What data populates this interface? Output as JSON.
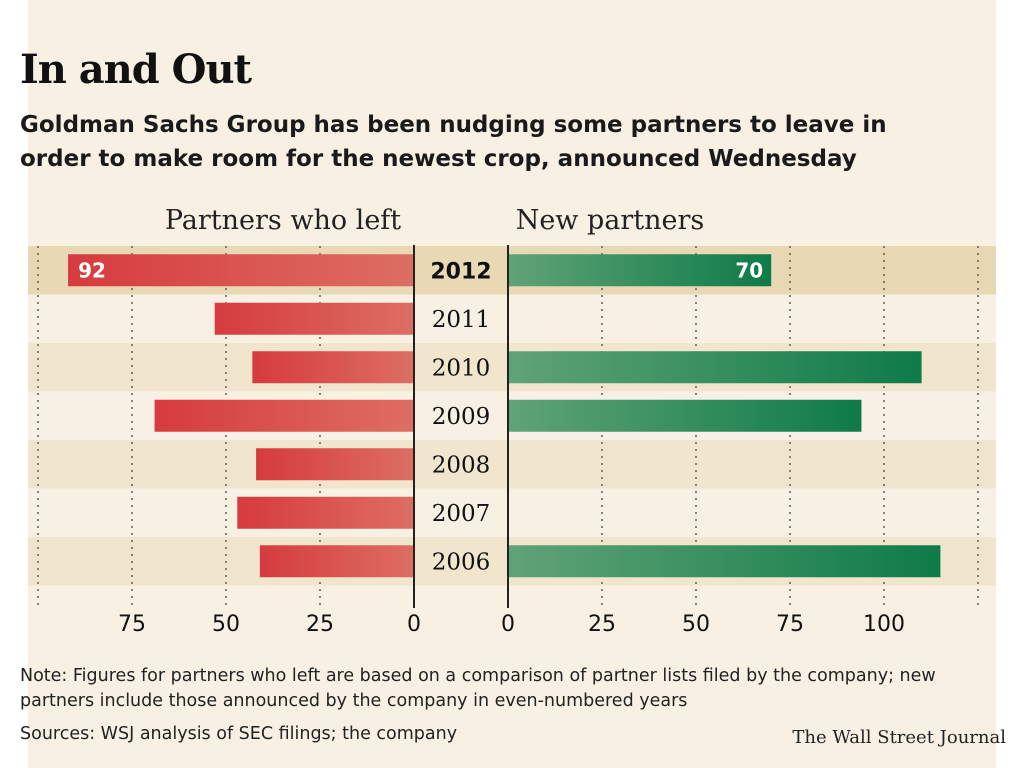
{
  "header": {
    "title": "In and Out",
    "subtitle": "Goldman Sachs Group has been nudging some partners to leave in order to make room for the newest crop, announced Wednesday"
  },
  "footer": {
    "note": "Note: Figures for partners who left are based on a comparison of partner lists filed by the company; new partners include those announced by the company in even-numbered years",
    "sources": "Sources: WSJ analysis of SEC filings; the company",
    "credit": "The Wall Street Journal"
  },
  "colors": {
    "left_bar_dark": "#d63b3f",
    "left_bar_light": "#dd6e63",
    "right_bar_dark": "#0e7b48",
    "right_bar_light": "#60a377",
    "background": "#f8f1e3",
    "band": "#f1e5cd",
    "highlight_band": "#e8d8b3"
  },
  "chart_data": {
    "type": "bar",
    "orientation": "horizontal",
    "layout": "back-to-back",
    "categories": [
      "2012",
      "2011",
      "2010",
      "2009",
      "2008",
      "2007",
      "2006"
    ],
    "highlight_category": "2012",
    "series": [
      {
        "name": "Partners who left",
        "side": "left",
        "values": [
          92,
          53,
          43,
          69,
          42,
          47,
          41
        ],
        "data_labels": [
          "92",
          null,
          null,
          null,
          null,
          null,
          null
        ]
      },
      {
        "name": "New partners",
        "side": "right",
        "values": [
          70,
          null,
          110,
          94,
          null,
          null,
          115
        ],
        "data_labels": [
          "70",
          null,
          null,
          null,
          null,
          null,
          null
        ]
      }
    ],
    "left_axis": {
      "ticks": [
        "75",
        "50",
        "25",
        "0"
      ],
      "tick_values": [
        75,
        50,
        25,
        0
      ],
      "range": [
        0,
        100
      ]
    },
    "right_axis": {
      "ticks": [
        "0",
        "25",
        "50",
        "75",
        "100"
      ],
      "tick_values": [
        0,
        25,
        50,
        75,
        100
      ],
      "range": [
        0,
        120
      ]
    },
    "grid": true,
    "legend": "none"
  }
}
